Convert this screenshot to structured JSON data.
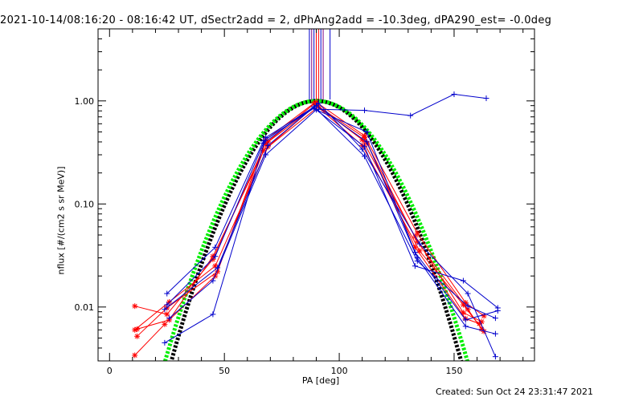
{
  "chart_data": {
    "type": "scatter",
    "title": "2021-10-14/08:16:20 - 08:16:42 UT, dSectr2add = 2, dPhAng2add = -10.3deg, dPA290_est= -0.0deg",
    "xlabel": "PA [deg]",
    "ylabel": "nflux [#/(cm2 s sr MeV)]",
    "xlim": [
      -5,
      185
    ],
    "ylim": [
      0.003,
      5
    ],
    "yscale": "log",
    "xticks": [
      0,
      50,
      100,
      150
    ],
    "xtick_labels": [
      "0",
      "50",
      "100",
      "150"
    ],
    "yticks": [
      0.01,
      0.1,
      1
    ],
    "ytick_labels": [
      "0.01",
      "0.10",
      "1.00"
    ],
    "grid": false,
    "series": [
      {
        "color": "#ff0000",
        "style": "line+star",
        "x": [
          11,
          25,
          45,
          68,
          90,
          111,
          134,
          155,
          163
        ],
        "y": [
          0.0102,
          0.0085,
          0.029,
          0.39,
          0.97,
          0.46,
          0.052,
          0.011,
          0.0082
        ]
      },
      {
        "color": "#ff0000",
        "style": "line+star",
        "x": [
          11,
          26,
          46,
          69,
          90,
          110,
          133,
          154,
          162
        ],
        "y": [
          0.006,
          0.0112,
          0.025,
          0.36,
          0.92,
          0.42,
          0.048,
          0.0088,
          0.0072
        ]
      },
      {
        "color": "#ff0000",
        "style": "line+star",
        "x": [
          12,
          25,
          47,
          68,
          89,
          112,
          134,
          156,
          162
        ],
        "y": [
          0.0052,
          0.0098,
          0.022,
          0.42,
          0.95,
          0.39,
          0.043,
          0.0095,
          0.0061
        ]
      },
      {
        "color": "#ff0000",
        "style": "line+star",
        "x": [
          11,
          24,
          46,
          67,
          91,
          111,
          133,
          155,
          161
        ],
        "y": [
          0.0034,
          0.0068,
          0.02,
          0.33,
          0.88,
          0.44,
          0.038,
          0.0077,
          0.0069
        ]
      },
      {
        "color": "#ff0000",
        "style": "line+star",
        "x": [
          12,
          26,
          45,
          69,
          90,
          110,
          135,
          154,
          163
        ],
        "y": [
          0.0061,
          0.0075,
          0.031,
          0.4,
          0.9,
          0.37,
          0.035,
          0.0105,
          0.0058
        ]
      },
      {
        "color": "#0000cc",
        "style": "line+plus",
        "x": [
          24,
          45,
          68,
          90,
          112,
          134,
          155,
          168
        ],
        "y": [
          0.0045,
          0.0085,
          0.44,
          0.9,
          0.4,
          0.03,
          0.0065,
          0.0055
        ]
      },
      {
        "color": "#0000cc",
        "style": "line+plus",
        "x": [
          25,
          46,
          67,
          89,
          111,
          133,
          154,
          169
        ],
        "y": [
          0.0135,
          0.038,
          0.41,
          0.85,
          0.36,
          0.025,
          0.018,
          0.0098
        ]
      },
      {
        "color": "#0000cc",
        "style": "line+plus",
        "x": [
          24,
          47,
          69,
          91,
          110,
          135,
          156,
          168
        ],
        "y": [
          0.0095,
          0.024,
          0.37,
          0.95,
          0.34,
          0.041,
          0.0135,
          0.0033
        ]
      },
      {
        "color": "#0000cc",
        "style": "line+plus",
        "x": [
          26,
          45,
          68,
          90,
          112,
          133,
          155,
          169
        ],
        "y": [
          0.0078,
          0.018,
          0.3,
          0.82,
          0.5,
          0.034,
          0.0075,
          0.0092
        ]
      },
      {
        "color": "#0000cc",
        "style": "line+plus",
        "x": [
          25,
          46,
          67,
          89,
          111,
          134,
          156,
          168
        ],
        "y": [
          0.0105,
          0.031,
          0.39,
          0.88,
          0.29,
          0.028,
          0.0102,
          0.0078
        ]
      },
      {
        "color": "#0000cc",
        "style": "line+plus",
        "x": [
          91,
          111,
          131,
          150,
          164
        ],
        "y": [
          0.83,
          0.81,
          0.72,
          1.16,
          1.06
        ]
      }
    ],
    "vertical_lines": [
      {
        "color": "#0000cc",
        "x": [
          87,
          89,
          92,
          96
        ]
      },
      {
        "color": "#ff0000",
        "x": [
          90,
          91
        ]
      },
      {
        "color": "#800080",
        "x": [
          88,
          93
        ]
      }
    ],
    "fit_curves": [
      {
        "color": "#000000",
        "style": "dots",
        "type": "gaussian",
        "center": 90,
        "sigma": 18.5,
        "peak": 1.0
      },
      {
        "color": "#00ee00",
        "style": "dots",
        "type": "gaussian",
        "center": 90,
        "sigma": 19.3,
        "peak": 1.0
      }
    ]
  },
  "created": "Created: Sun Oct 24 23:31:47 2021"
}
